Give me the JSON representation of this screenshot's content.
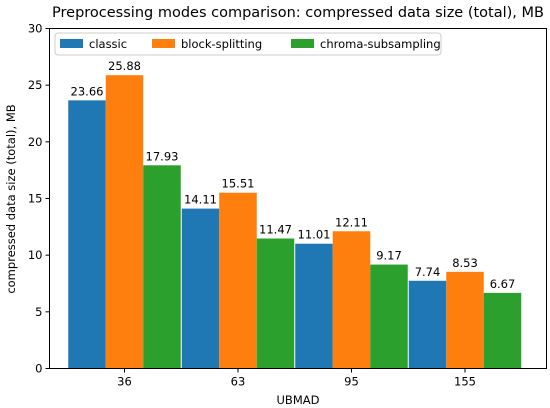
{
  "chart_data": {
    "type": "bar",
    "title": "Preprocessing modes comparison: compressed data size (total), MB",
    "xlabel": "UBMAD",
    "ylabel": "compressed data size (total), MB",
    "categories": [
      "36",
      "63",
      "95",
      "155"
    ],
    "series": [
      {
        "name": "classic",
        "color": "#1f77b4",
        "values": [
          23.66,
          14.11,
          11.01,
          7.74
        ]
      },
      {
        "name": "block-splitting",
        "color": "#ff7f0e",
        "values": [
          25.88,
          15.51,
          12.11,
          8.53
        ]
      },
      {
        "name": "chroma-subsampling",
        "color": "#2ca02c",
        "values": [
          17.93,
          11.47,
          9.17,
          6.67
        ]
      }
    ],
    "ylim": [
      0,
      30
    ],
    "yticks": [
      0,
      5,
      10,
      15,
      20,
      25,
      30
    ],
    "grid": false,
    "legend": "top-left"
  }
}
